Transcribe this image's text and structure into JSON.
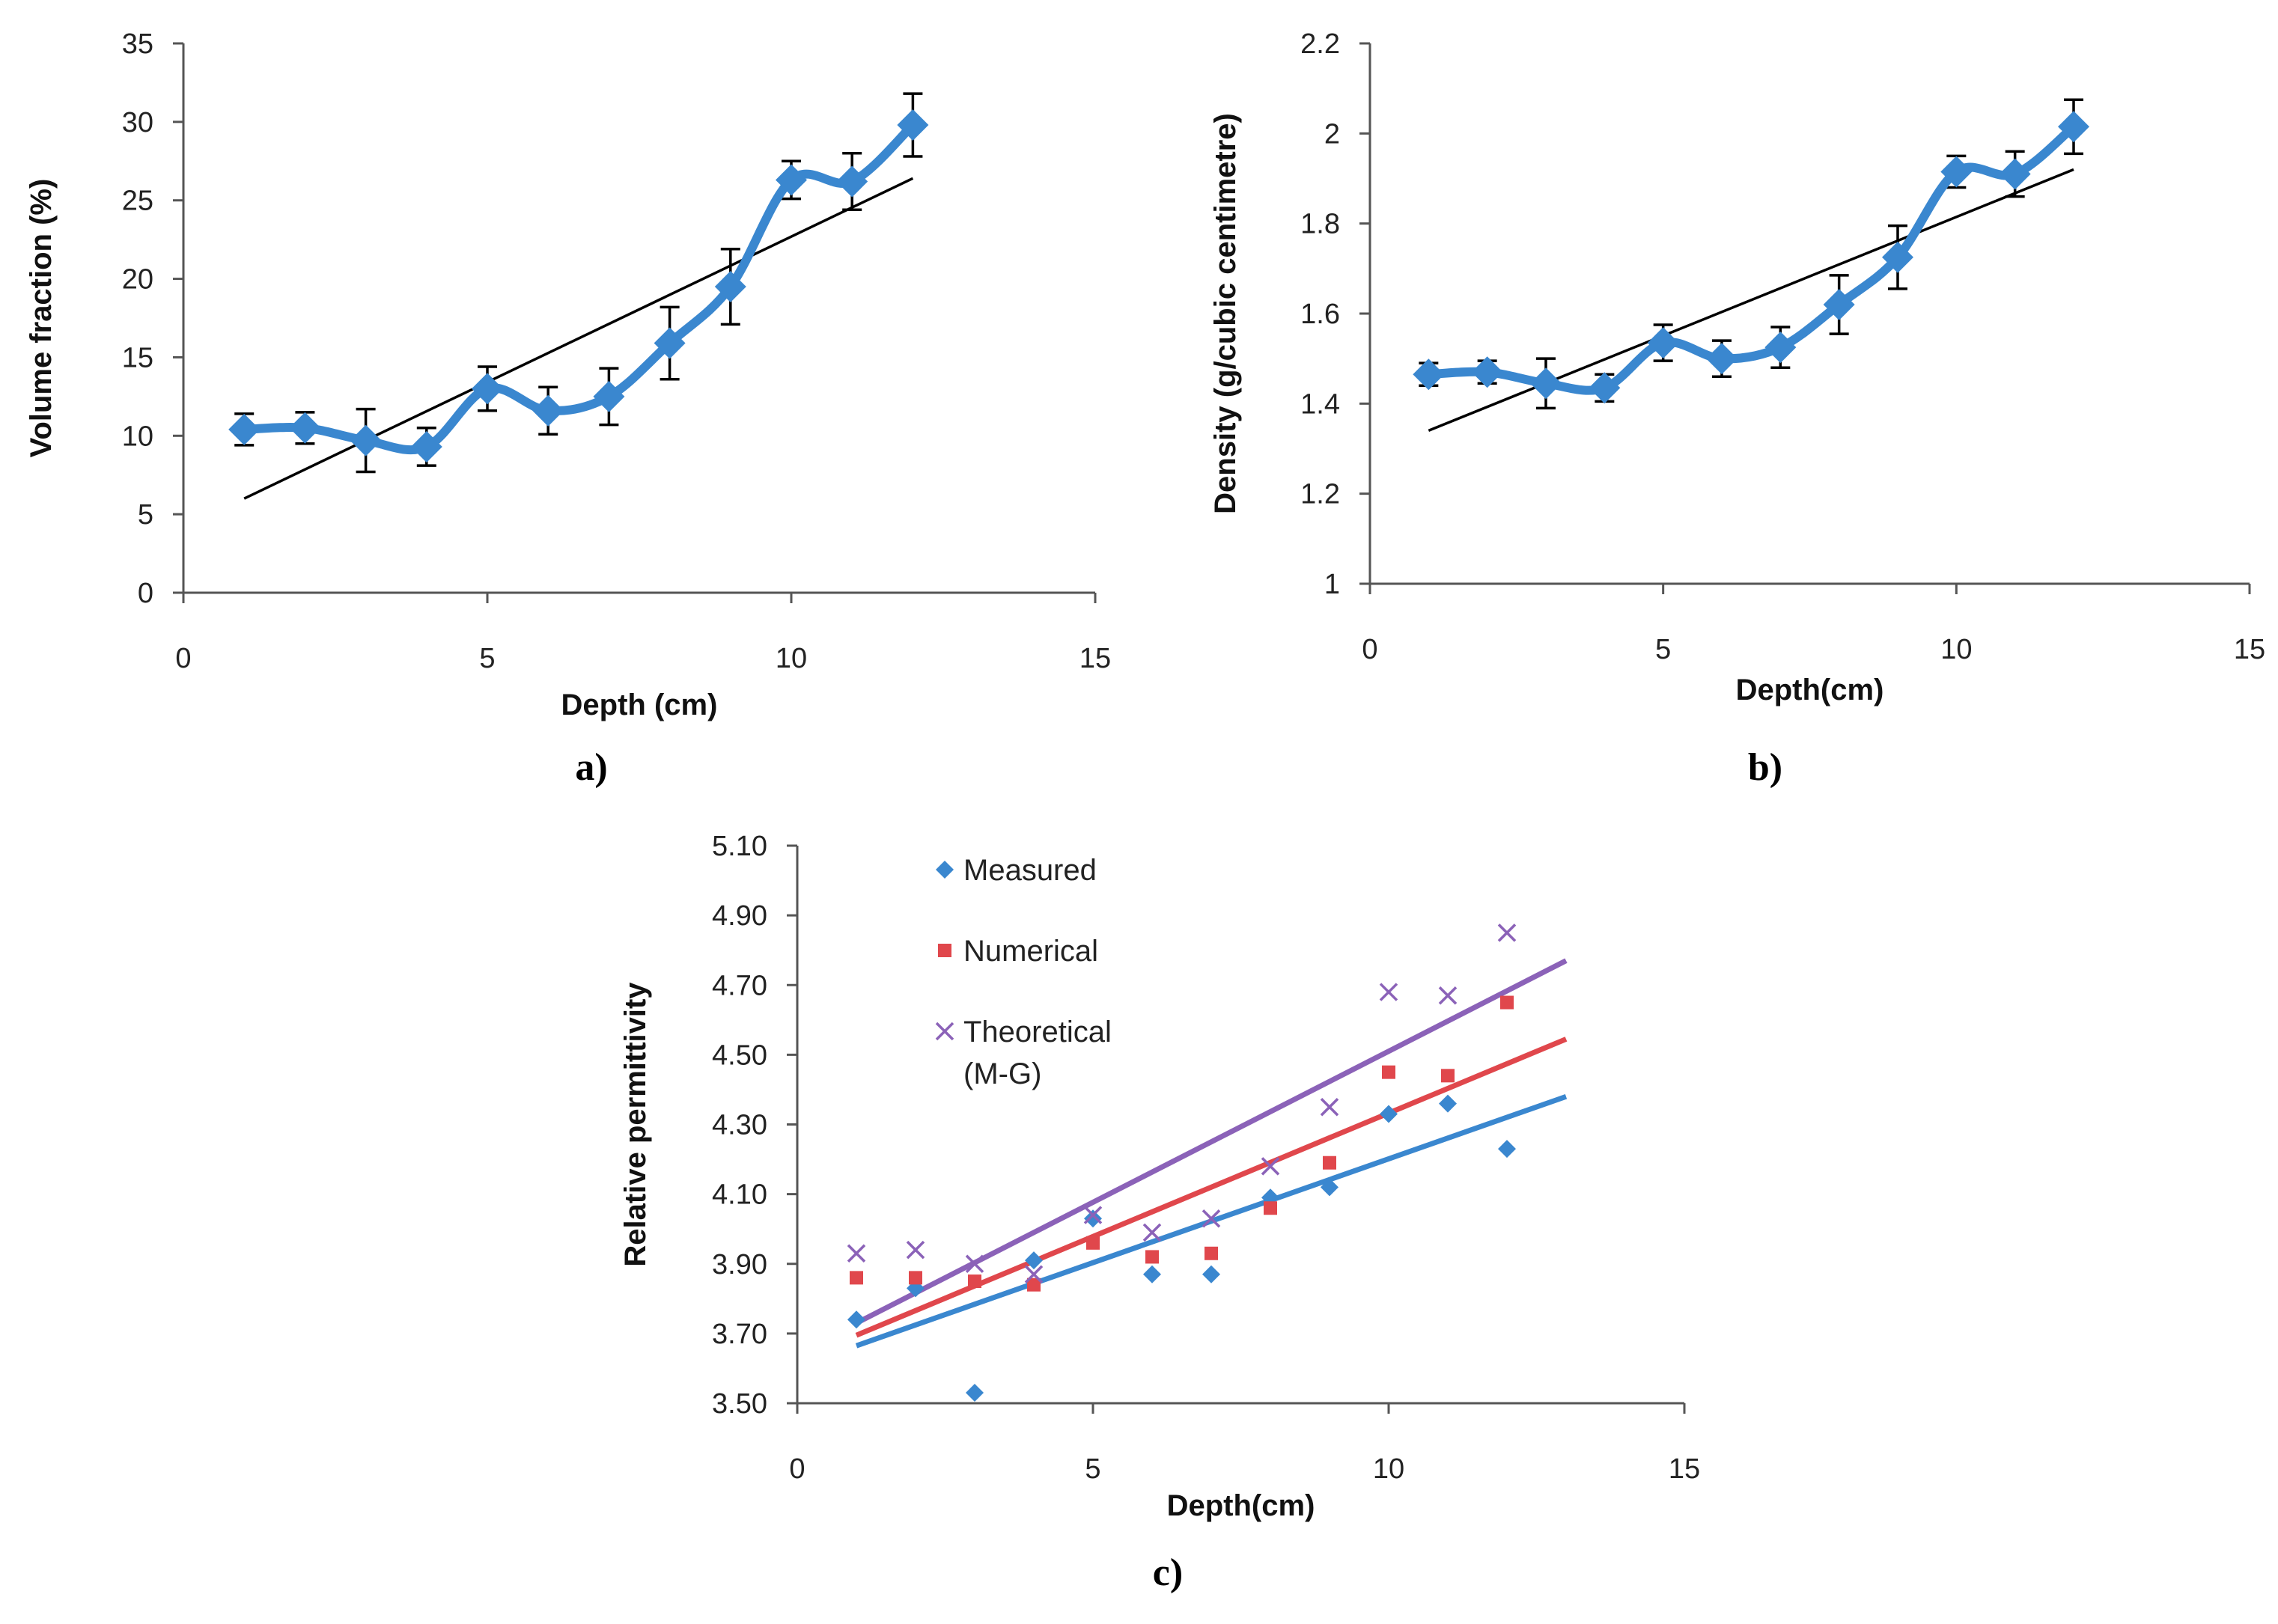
{
  "chart_data": [
    {
      "panel_label": "a)",
      "type": "line",
      "xlabel": "Depth (cm)",
      "ylabel": "Volume fraction (%)",
      "xlim": [
        0,
        15
      ],
      "ylim": [
        0,
        35
      ],
      "xticks": [
        "0",
        "5",
        "10",
        "15"
      ],
      "yticks": [
        "0",
        "5",
        "10",
        "15",
        "20",
        "25",
        "30",
        "35"
      ],
      "grid": false,
      "series": [
        {
          "x": [
            1,
            2,
            3,
            4,
            5,
            6,
            7,
            8,
            9,
            10,
            11,
            12
          ],
          "values": [
            10.4,
            10.5,
            9.7,
            9.3,
            13.0,
            11.6,
            12.5,
            15.9,
            19.5,
            26.3,
            26.2,
            29.8
          ],
          "error": [
            1.0,
            1.0,
            2.0,
            1.2,
            1.4,
            1.5,
            1.8,
            2.3,
            2.4,
            1.2,
            1.8,
            2.0
          ],
          "color": "#3a87cf",
          "marker": "diamond"
        }
      ],
      "trendline": {
        "x": [
          1,
          12
        ],
        "y": [
          6.0,
          26.4
        ],
        "color": "#000000"
      }
    },
    {
      "panel_label": "b)",
      "type": "line",
      "xlabel": "Depth(cm)",
      "ylabel": "Density (g/cubic centimetre)",
      "xlim": [
        0,
        15
      ],
      "ylim": [
        1,
        2.2
      ],
      "xticks": [
        "0",
        "5",
        "10",
        "15"
      ],
      "yticks": [
        "1",
        "1.2",
        "1.4",
        "1.6",
        "1.8",
        "2",
        "2.2"
      ],
      "grid": false,
      "series": [
        {
          "x": [
            1,
            2,
            3,
            4,
            5,
            6,
            7,
            8,
            9,
            10,
            11,
            12
          ],
          "values": [
            1.465,
            1.47,
            1.445,
            1.435,
            1.535,
            1.5,
            1.525,
            1.62,
            1.725,
            1.915,
            1.91,
            2.015
          ],
          "error": [
            0.025,
            0.025,
            0.055,
            0.03,
            0.04,
            0.04,
            0.045,
            0.065,
            0.07,
            0.035,
            0.05,
            0.06
          ],
          "color": "#3a87cf",
          "marker": "diamond"
        }
      ],
      "trendline": {
        "x": [
          1,
          12
        ],
        "y": [
          1.34,
          1.92
        ],
        "color": "#000000"
      }
    },
    {
      "panel_label": "c)",
      "type": "scatter",
      "xlabel": "Depth(cm)",
      "ylabel": "Relative permittivity",
      "xlim": [
        0,
        15
      ],
      "ylim": [
        3.5,
        5.1
      ],
      "xticks": [
        "0",
        "5",
        "10",
        "15"
      ],
      "yticks": [
        "3.50",
        "3.70",
        "3.90",
        "4.10",
        "4.30",
        "4.50",
        "4.70",
        "4.90",
        "5.10"
      ],
      "grid": false,
      "legend_position": "top-left",
      "series": [
        {
          "name": "Measured",
          "marker": "diamond",
          "color": "#3a87cf",
          "x": [
            1,
            2,
            3,
            4,
            5,
            6,
            7,
            8,
            9,
            10,
            11,
            12
          ],
          "values": [
            3.74,
            3.83,
            3.53,
            3.91,
            4.03,
            3.87,
            3.87,
            4.09,
            4.12,
            4.33,
            4.36,
            4.23
          ],
          "trendline": {
            "x": [
              1,
              13
            ],
            "y": [
              3.665,
              4.38
            ]
          }
        },
        {
          "name": "Numerical",
          "marker": "square",
          "color": "#e0474c",
          "x": [
            1,
            2,
            3,
            4,
            5,
            6,
            7,
            8,
            9,
            10,
            11,
            12
          ],
          "values": [
            3.86,
            3.86,
            3.85,
            3.84,
            3.96,
            3.92,
            3.93,
            4.06,
            4.19,
            4.45,
            4.44,
            4.65
          ],
          "trendline": {
            "x": [
              1,
              13
            ],
            "y": [
              3.695,
              4.545
            ]
          }
        },
        {
          "name": "Theoretical\n(M-G)",
          "marker": "x",
          "color": "#8b62b8",
          "x": [
            1,
            2,
            3,
            4,
            5,
            6,
            7,
            8,
            9,
            10,
            11,
            12
          ],
          "values": [
            3.93,
            3.94,
            3.9,
            3.87,
            4.04,
            3.99,
            4.03,
            4.18,
            4.35,
            4.68,
            4.67,
            4.85
          ],
          "trendline": {
            "x": [
              1,
              13
            ],
            "y": [
              3.73,
              4.77
            ]
          }
        }
      ]
    }
  ]
}
